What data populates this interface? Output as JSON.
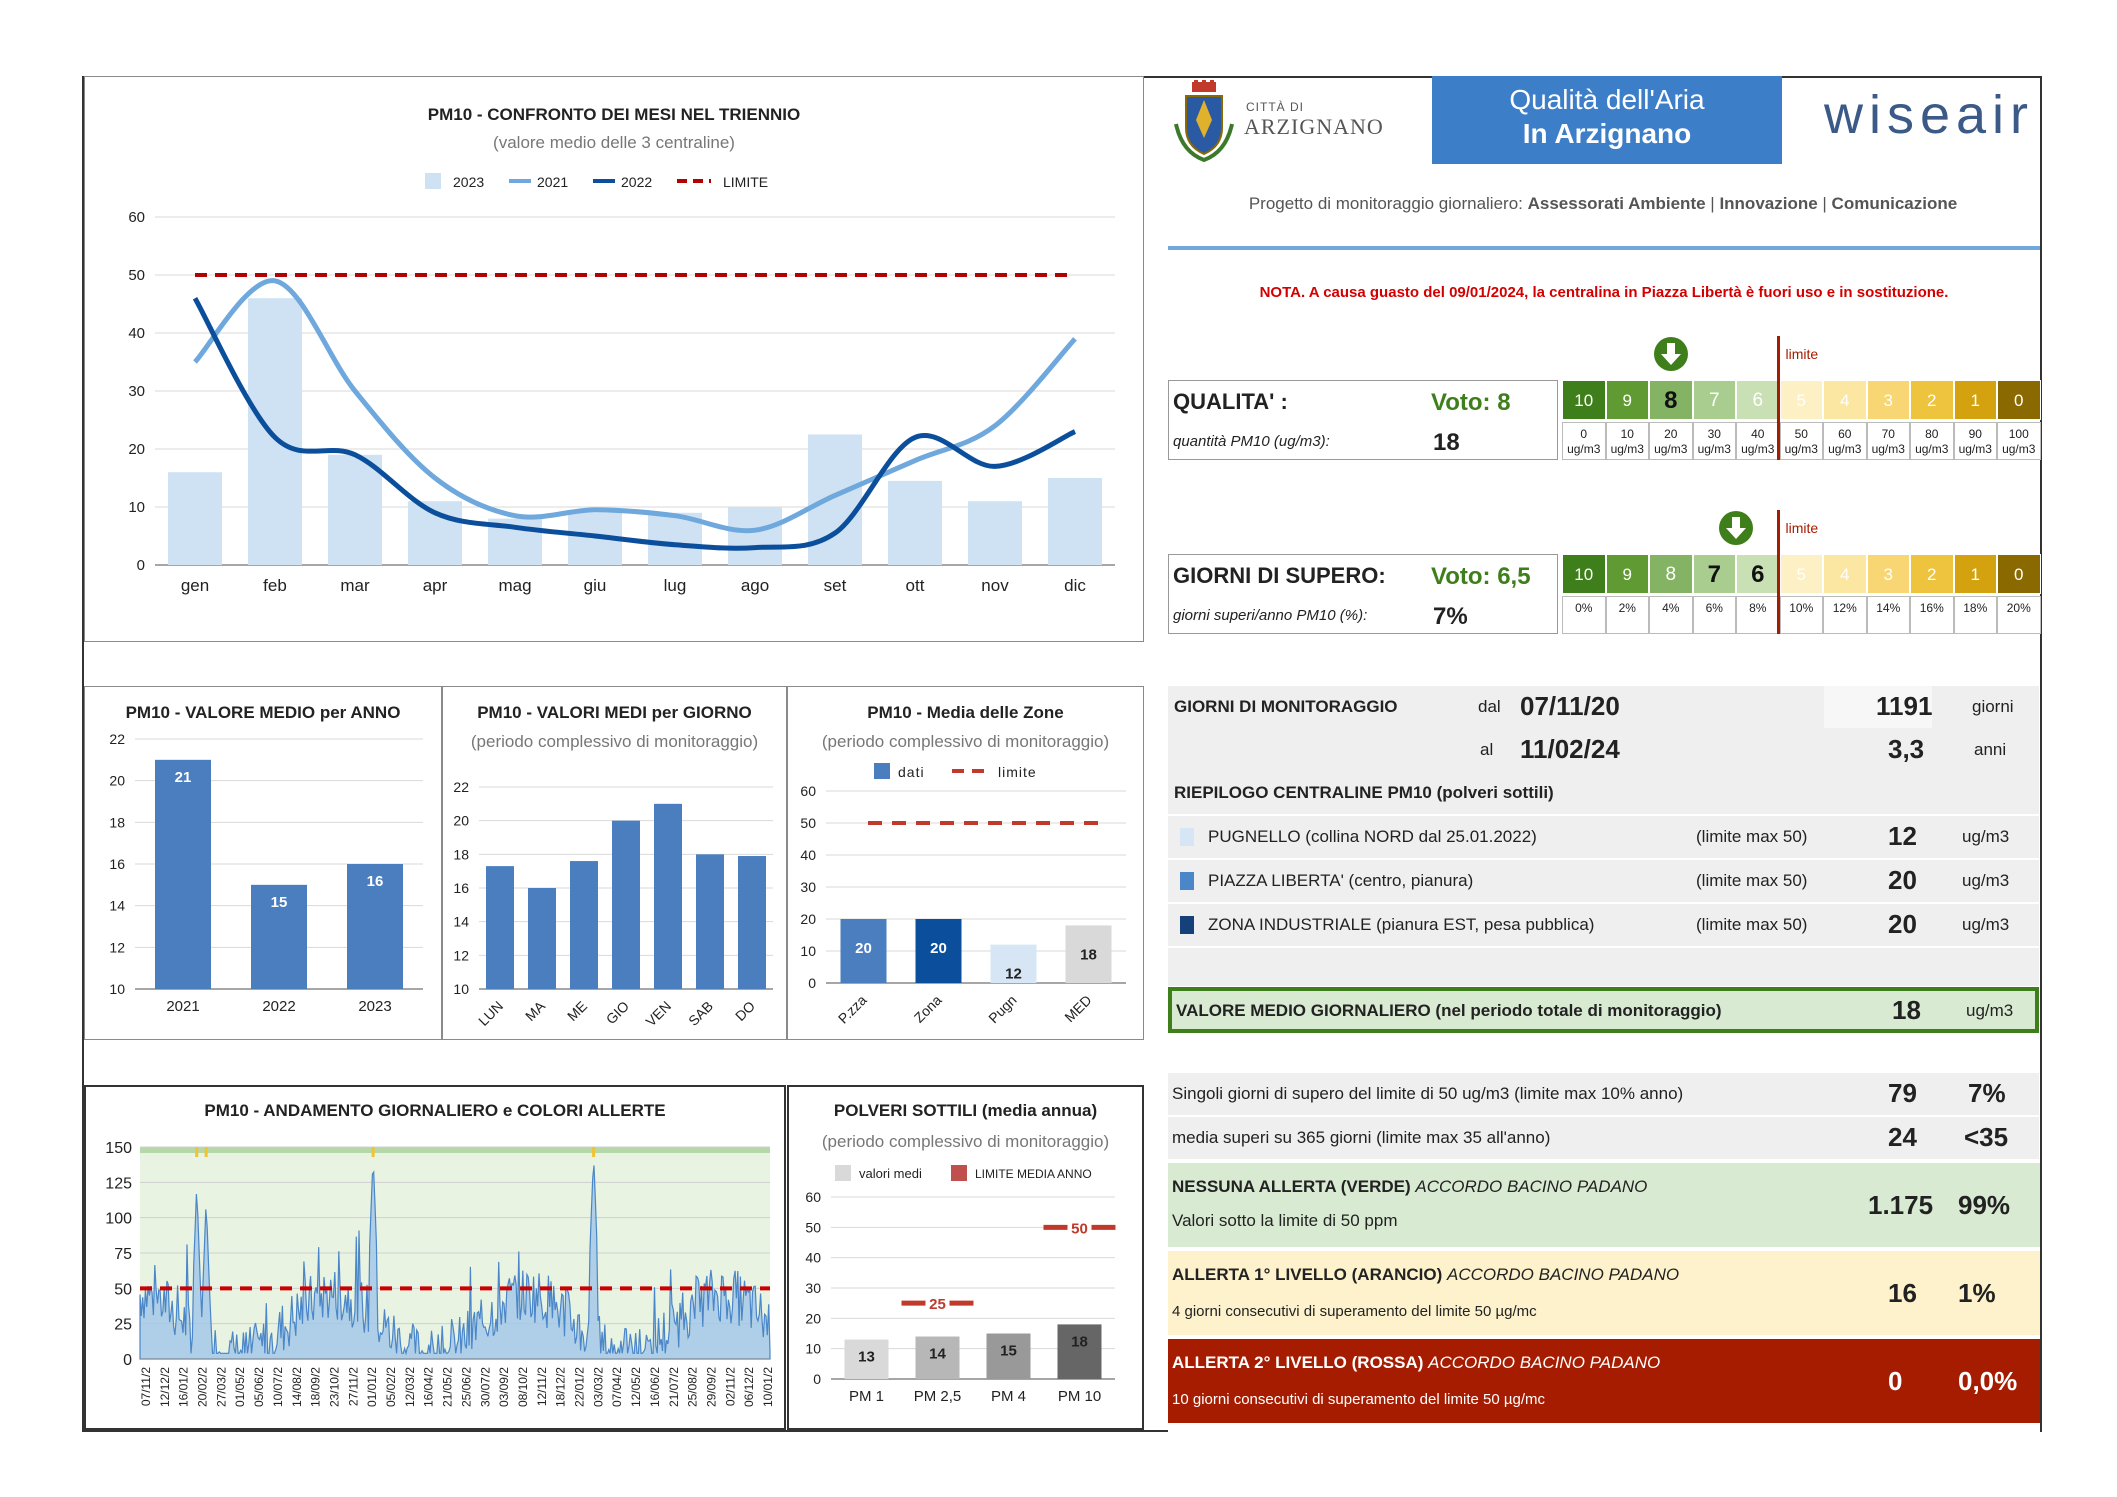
{
  "header": {
    "city_small": "CITTÀ DI",
    "city": "ARZIGNANO",
    "banner_line1": "Qualità dell'Aria",
    "banner_line2": "In Arzignano",
    "brand": "wiseair",
    "project_prefix": "Progetto di monitoraggio giornaliero:",
    "project_items": [
      "Assessorati Ambiente",
      "Innovazione",
      "Comunicazione"
    ],
    "note": "NOTA. A causa guasto del 09/01/2024, la centralina in Piazza Libertà è fuori uso e in sostituzione."
  },
  "scale": {
    "limit_label": "limite",
    "colors": [
      "#3f7f1b",
      "#5f9a33",
      "#84b363",
      "#a9cd8f",
      "#c9e0b5",
      "#fdf0c4",
      "#fbe7a1",
      "#f7d673",
      "#eec33d",
      "#d4a20e",
      "#8a6a00"
    ],
    "quality": {
      "title": "QUALITA' :",
      "vote": "Voto: 8",
      "sub": "quantità PM10 (ug/m3):",
      "value": "18",
      "scores": [
        "10",
        "9",
        "8",
        "7",
        "6",
        "5",
        "4",
        "3",
        "2",
        "1",
        "0"
      ],
      "thresholds": [
        "0",
        "10",
        "20",
        "30",
        "40",
        "50",
        "60",
        "70",
        "80",
        "90",
        "100"
      ],
      "unit": "ug/m3",
      "selected_index": 2
    },
    "exceed": {
      "title": "GIORNI DI SUPERO:",
      "vote": "Voto: 6,5",
      "sub": "giorni superi/anno PM10 (%):",
      "value": "7%",
      "scores": [
        "10",
        "9",
        "8",
        "7",
        "6",
        "5",
        "4",
        "3",
        "2",
        "1",
        "0"
      ],
      "thresholds": [
        "0%",
        "2%",
        "4%",
        "6%",
        "8%",
        "10%",
        "12%",
        "14%",
        "16%",
        "18%",
        "20%"
      ],
      "selected_index": 3.5
    }
  },
  "monitoring": {
    "title": "GIORNI DI MONITORAGGIO",
    "from_label": "dal",
    "from": "07/11/20",
    "to_label": "al",
    "to": "11/02/24",
    "days": "1191",
    "days_unit": "giorni",
    "years": "3,3",
    "years_unit": "anni"
  },
  "stations": {
    "title": "RIEPILOGO CENTRALINE PM10 (polveri sottili)",
    "items": [
      {
        "name": "PUGNELLO (collina NORD dal 25.01.2022)",
        "limit": "(limite max 50)",
        "value": "12",
        "unit": "ug/m3",
        "color": "#d6e6f5"
      },
      {
        "name": "PIAZZA LIBERTA' (centro, pianura)",
        "limit": "(limite max 50)",
        "value": "20",
        "unit": "ug/m3",
        "color": "#4a86c8"
      },
      {
        "name": "ZONA INDUSTRIALE (pianura EST, pesa pubblica)",
        "limit": "(limite max 50)",
        "value": "20",
        "unit": "ug/m3",
        "color": "#16407a"
      }
    ],
    "mean_label": "VALORE MEDIO GIORNALIERO (nel periodo totale di monitoraggio)",
    "mean_value": "18",
    "mean_unit": "ug/m3"
  },
  "exceedances": {
    "single_label": "Singoli giorni di supero del limite di 50 ug/m3 (limite max 10% anno)",
    "single_value": "79",
    "single_pct": "7%",
    "avg_label": "media superi su 365 giorni (limite max 35 all'anno)",
    "avg_value": "24",
    "avg_limit": "<35"
  },
  "alerts": [
    {
      "title": "NESSUNA ALLERTA (VERDE)",
      "accord": "ACCORDO BACINO PADANO",
      "desc": "Valori sotto la limite di 50 ppm",
      "value": "1.175",
      "pct": "99%",
      "bg": "#d9ead3",
      "fg": "#222"
    },
    {
      "title": "ALLERTA 1° LIVELLO (ARANCIO)",
      "accord": "ACCORDO BACINO PADANO",
      "desc": "4 giorni consecutivi di superamento del limite 50 µg/mc",
      "value": "16",
      "pct": "1%",
      "bg": "#fdf2cc",
      "fg": "#222"
    },
    {
      "title": "ALLERTA 2° LIVELLO (ROSSA)",
      "accord": "ACCORDO BACINO PADANO",
      "desc": "10 giorni consecutivi di superamento del limite 50 µg/mc",
      "value": "0",
      "pct": "0,0%",
      "bg": "#a61c00",
      "fg": "#fff"
    }
  ],
  "chart_data": [
    {
      "id": "months",
      "type": "bar",
      "title": "PM10 - CONFRONTO DEI MESI NEL TRIENNIO",
      "subtitle": "(valore medio delle 3 centraline)",
      "categories": [
        "gen",
        "feb",
        "mar",
        "apr",
        "mag",
        "giu",
        "lug",
        "ago",
        "set",
        "ott",
        "nov",
        "dic"
      ],
      "ylim": [
        0,
        60
      ],
      "yticks": [
        0,
        10,
        20,
        30,
        40,
        50,
        60
      ],
      "limit": 50,
      "legend": [
        "2023",
        "2021",
        "2022",
        "LIMITE"
      ],
      "series": [
        {
          "name": "2023",
          "kind": "bar",
          "color": "#cfe2f3",
          "values": [
            16,
            46,
            19,
            11,
            8,
            9,
            9,
            10,
            22.5,
            14.5,
            11,
            15
          ]
        },
        {
          "name": "2021",
          "kind": "line",
          "color": "#6fa8dc",
          "values": [
            35,
            49,
            30,
            15,
            8.5,
            9.5,
            8.5,
            6,
            12,
            18,
            24,
            39
          ]
        },
        {
          "name": "2022",
          "kind": "line",
          "color": "#0b4f9c",
          "values": [
            46,
            22,
            19,
            9,
            6.5,
            5,
            3.5,
            3,
            5.5,
            22,
            17,
            23
          ]
        }
      ]
    },
    {
      "id": "year",
      "type": "bar",
      "title": "PM10 - VALORE MEDIO per ANNO",
      "categories": [
        "2021",
        "2022",
        "2023"
      ],
      "values": [
        21,
        15,
        16
      ],
      "ylim": [
        10,
        22
      ],
      "yticks": [
        10,
        12,
        14,
        16,
        18,
        20,
        22
      ],
      "color": "#4a7ebf"
    },
    {
      "id": "weekday",
      "type": "bar",
      "title": "PM10 - VALORI MEDI per GIORNO",
      "subtitle": "(periodo complessivo di monitoraggio)",
      "categories": [
        "LUN",
        "MA",
        "ME",
        "GIO",
        "VEN",
        "SAB",
        "DO"
      ],
      "values": [
        17.3,
        16,
        17.6,
        20,
        21,
        18,
        17.9
      ],
      "ylim": [
        10,
        22
      ],
      "yticks": [
        10,
        12,
        14,
        16,
        18,
        20,
        22
      ],
      "color": "#4a7ebf"
    },
    {
      "id": "zones",
      "type": "bar",
      "title": "PM10 - Media delle Zone",
      "subtitle": "(periodo complessivo di monitoraggio)",
      "categories": [
        "P.zza",
        "Zona",
        "Pugn",
        "MED"
      ],
      "values": [
        20,
        20,
        12,
        18
      ],
      "colors": [
        "#4a7ebf",
        "#0b4f9c",
        "#d6e6f5",
        "#d9d9d9"
      ],
      "ylim": [
        0,
        60
      ],
      "yticks": [
        0,
        10,
        20,
        30,
        40,
        50,
        60
      ],
      "limit": 50,
      "legend": [
        "dati",
        "limite"
      ]
    },
    {
      "id": "daily",
      "type": "area",
      "title": "PM10 - ANDAMENTO GIORNALIERO e COLORI ALLERTE",
      "ylim": [
        0,
        150
      ],
      "yticks": [
        0,
        25,
        50,
        75,
        100,
        125,
        150
      ],
      "limit": 50,
      "x_labels": [
        "07/11/2",
        "12/12/2",
        "16/01/2",
        "20/02/2",
        "27/03/2",
        "01/05/2",
        "05/06/2",
        "10/07/2",
        "14/08/2",
        "18/09/2",
        "23/10/2",
        "27/11/2",
        "01/01/2",
        "05/02/2",
        "12/03/2",
        "16/04/2",
        "21/05/2",
        "25/06/2",
        "30/07/2",
        "03/09/2",
        "08/10/2",
        "12/11/2",
        "18/12/2",
        "22/01/2",
        "03/03/2",
        "07/04/2",
        "12/05/2",
        "16/06/2",
        "21/07/2",
        "25/08/2",
        "29/09/2",
        "02/11/2",
        "06/12/2",
        "10/01/2"
      ],
      "peaks": [
        {
          "x": 0.09,
          "y": 122
        },
        {
          "x": 0.105,
          "y": 112
        },
        {
          "x": 0.37,
          "y": 144
        },
        {
          "x": 0.72,
          "y": 145
        }
      ]
    },
    {
      "id": "pm",
      "type": "bar",
      "title": "POLVERI SOTTILI (media annua)",
      "subtitle": "(periodo complessivo di monitoraggio)",
      "categories": [
        "PM 1",
        "PM 2,5",
        "PM 4",
        "PM 10"
      ],
      "values": [
        13,
        14,
        15,
        18
      ],
      "limits": [
        null,
        25,
        null,
        50
      ],
      "colors": [
        "#d9d9d9",
        "#b7b7b7",
        "#999999",
        "#666666"
      ],
      "ylim": [
        0,
        60
      ],
      "yticks": [
        0,
        10,
        20,
        30,
        40,
        50,
        60
      ],
      "legend": [
        "valori medi",
        "LIMITE MEDIA ANNO"
      ]
    }
  ]
}
